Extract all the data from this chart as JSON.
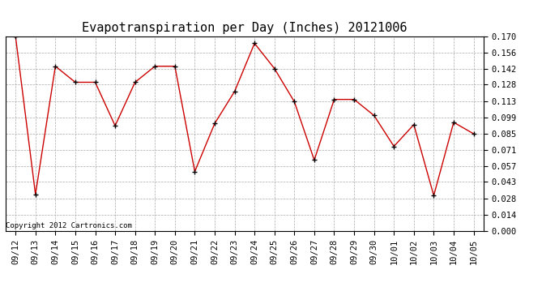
{
  "title": "Evapotranspiration per Day (Inches) 20121006",
  "copyright_text": "Copyright 2012 Cartronics.com",
  "legend_bg": "#ff0000",
  "legend_fg": "#ffffff",
  "x_labels": [
    "09/12",
    "09/13",
    "09/14",
    "09/15",
    "09/16",
    "09/17",
    "09/18",
    "09/19",
    "09/20",
    "09/21",
    "09/22",
    "09/23",
    "09/24",
    "09/25",
    "09/26",
    "09/27",
    "09/28",
    "09/29",
    "09/30",
    "10/01",
    "10/02",
    "10/03",
    "10/04",
    "10/05"
  ],
  "y_values": [
    0.17,
    0.032,
    0.144,
    0.13,
    0.13,
    0.092,
    0.13,
    0.144,
    0.144,
    0.052,
    0.094,
    0.122,
    0.164,
    0.142,
    0.113,
    0.062,
    0.115,
    0.115,
    0.101,
    0.074,
    0.093,
    0.031,
    0.095,
    0.085
  ],
  "y_ticks": [
    0.0,
    0.014,
    0.028,
    0.043,
    0.057,
    0.071,
    0.085,
    0.099,
    0.113,
    0.128,
    0.142,
    0.156,
    0.17
  ],
  "ylim": [
    0.0,
    0.17
  ],
  "line_color": "#cc0000",
  "marker_color": "#000000",
  "grid_color": "#aaaaaa",
  "bg_color": "#ffffff",
  "title_fontsize": 11,
  "tick_fontsize": 7.5,
  "copyright_fontsize": 6.5
}
